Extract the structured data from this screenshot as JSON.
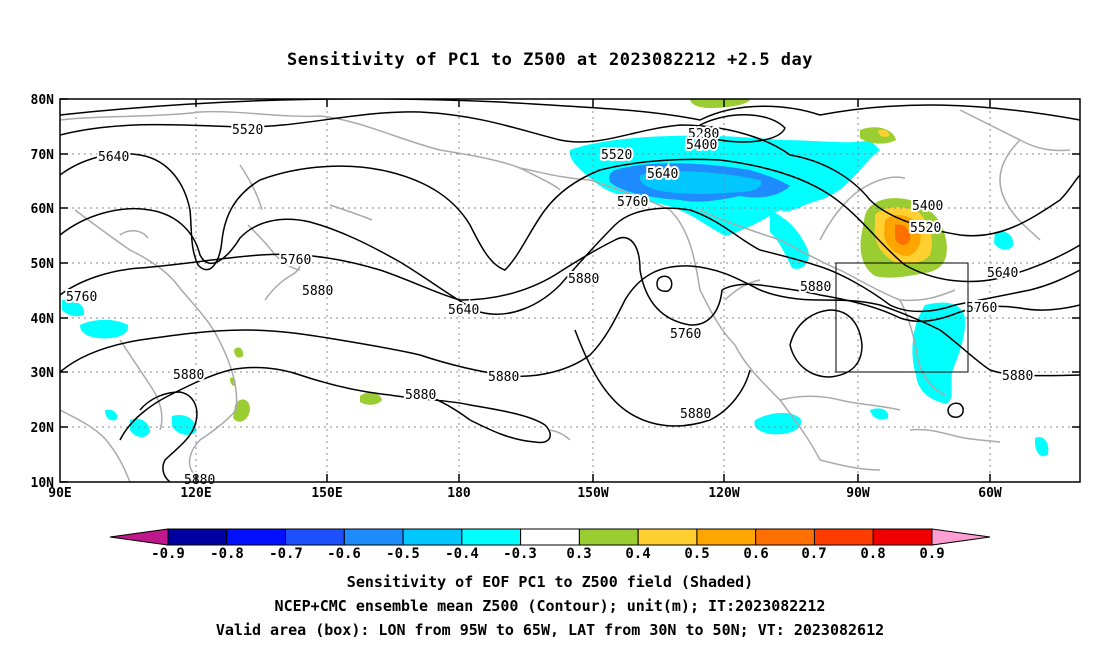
{
  "title": "Sensitivity of PC1 to Z500 at 2023082212 +2.5 day",
  "map": {
    "lat_labels": [
      "80N",
      "70N",
      "60N",
      "50N",
      "40N",
      "30N",
      "20N",
      "10N"
    ],
    "lon_labels": [
      "90E",
      "120E",
      "150E",
      "180",
      "150W",
      "120W",
      "90W",
      "60W"
    ],
    "contour_labels": [
      {
        "text": "5520"
      },
      {
        "text": "5640"
      },
      {
        "text": "5280"
      },
      {
        "text": "5400"
      },
      {
        "text": "5520"
      },
      {
        "text": "5640"
      },
      {
        "text": "5760"
      },
      {
        "text": "5400"
      },
      {
        "text": "5520"
      },
      {
        "text": "5640"
      },
      {
        "text": "5760"
      },
      {
        "text": "5880"
      },
      {
        "text": "5640"
      },
      {
        "text": "5880"
      },
      {
        "text": "5760"
      },
      {
        "text": "5880"
      },
      {
        "text": "5760"
      },
      {
        "text": "5880"
      },
      {
        "text": "5880"
      },
      {
        "text": "5880"
      },
      {
        "text": "5880"
      },
      {
        "text": "5880"
      },
      {
        "text": "5760"
      }
    ],
    "box": {
      "lon_from": "95W",
      "lon_to": "65W",
      "lat_from": "30N",
      "lat_to": "50N"
    }
  },
  "colorbar": {
    "labels": [
      "-0.9",
      "-0.8",
      "-0.7",
      "-0.6",
      "-0.5",
      "-0.4",
      "-0.3",
      "0.3",
      "0.4",
      "0.5",
      "0.6",
      "0.7",
      "0.8",
      "0.9"
    ],
    "colors": [
      "#0000a0",
      "#0010ff",
      "#1e50ff",
      "#1e8cff",
      "#00c8ff",
      "#00ffff",
      "#ffffff",
      "#9acd32",
      "#ffd030",
      "#ffa500",
      "#ff7000",
      "#ff3c00",
      "#ee0000"
    ],
    "low_end_color": "#c0188c",
    "high_end_color": "#ff9ed2"
  },
  "captions": [
    "Sensitivity of EOF PC1 to Z500 field (Shaded)",
    "NCEP+CMC ensemble mean Z500 (Contour); unit(m); IT:2023082212",
    "Valid area (box): LON from 95W to 65W, LAT from 30N to 50N; VT: 2023082612"
  ]
}
